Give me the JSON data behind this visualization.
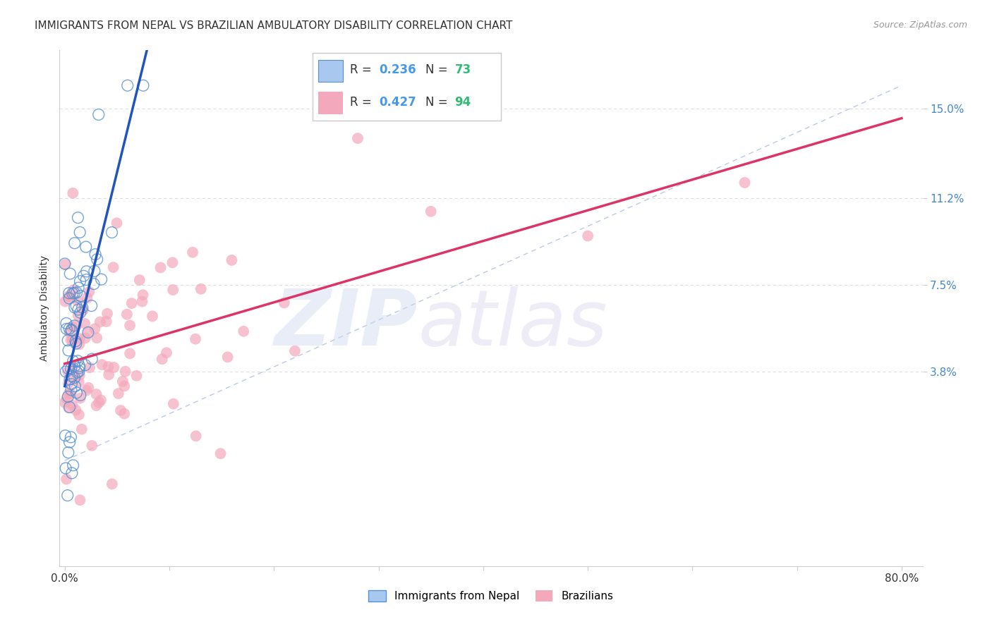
{
  "title": "IMMIGRANTS FROM NEPAL VS BRAZILIAN AMBULATORY DISABILITY CORRELATION CHART",
  "source": "Source: ZipAtlas.com",
  "ylabel": "Ambulatory Disability",
  "xlim": [
    -0.005,
    0.82
  ],
  "ylim": [
    -0.045,
    0.175
  ],
  "xticks": [
    0.0,
    0.1,
    0.2,
    0.3,
    0.4,
    0.5,
    0.6,
    0.7,
    0.8
  ],
  "xticklabels": [
    "0.0%",
    "",
    "",
    "",
    "",
    "",
    "",
    "",
    "80.0%"
  ],
  "ytick_positions": [
    0.038,
    0.075,
    0.112,
    0.15
  ],
  "ytick_labels": [
    "3.8%",
    "7.5%",
    "11.2%",
    "15.0%"
  ],
  "legend_label_blue": "Immigrants from Nepal",
  "legend_label_pink": "Brazilians",
  "blue_fill_color": "#a8c8f0",
  "blue_edge_color": "#5590d0",
  "pink_fill_color": "#f4a8bc",
  "pink_edge_color": "#e06080",
  "trend_blue_color": "#2255bb",
  "trend_pink_color": "#dd3366",
  "dash_line_color": "#aabbdd",
  "R_blue_text": "0.236",
  "N_blue_text": "73",
  "R_pink_text": "0.427",
  "N_pink_text": "94",
  "R_blue": 0.236,
  "N_blue": 73,
  "R_pink": 0.427,
  "N_pink": 94,
  "title_fontsize": 11,
  "source_fontsize": 9,
  "axis_label_fontsize": 10,
  "tick_fontsize": 11,
  "background_color": "#ffffff",
  "grid_color": "#dddddd",
  "stat_R_color": "#4499ee",
  "stat_N_color": "#33bb77"
}
